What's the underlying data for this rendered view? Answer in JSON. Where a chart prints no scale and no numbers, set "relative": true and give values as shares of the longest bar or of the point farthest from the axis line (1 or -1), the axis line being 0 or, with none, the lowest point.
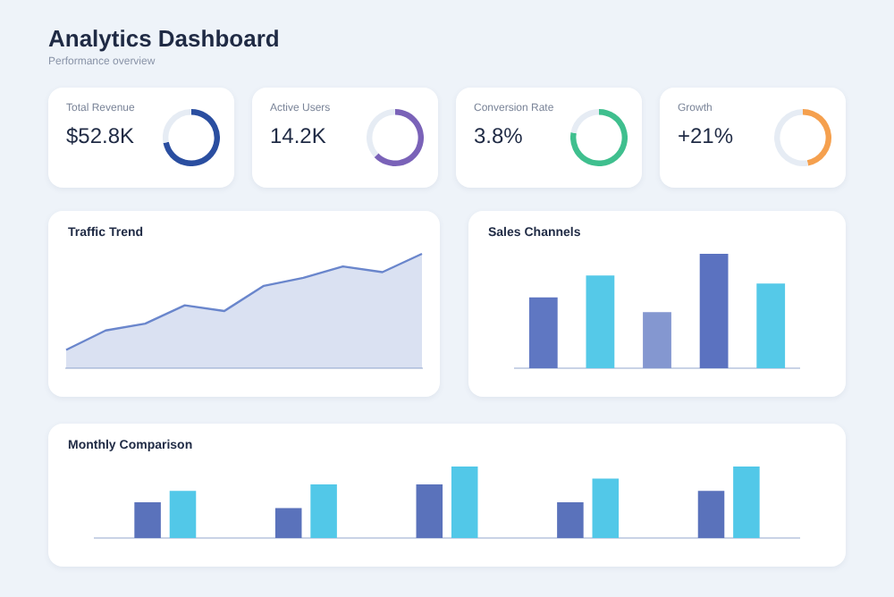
{
  "chart_data": [
    {
      "type": "other",
      "title": "Analytics Dashboard",
      "subtitle": "Performance overview"
    },
    {
      "type": "donut",
      "title": "Total Revenue",
      "annotations": [
        "$52.8K"
      ],
      "categories": [
        null,
        null
      ],
      "values": [
        72,
        28
      ],
      "colors": [
        "#2a4ea0",
        "#e6ecf4"
      ]
    },
    {
      "type": "donut",
      "title": "Active Users",
      "annotations": [
        "14.2K"
      ],
      "categories": [
        null,
        null
      ],
      "values": [
        63,
        37
      ],
      "colors": [
        "#7a62b8",
        "#e6ecf4"
      ]
    },
    {
      "type": "donut",
      "title": "Conversion Rate",
      "annotations": [
        "3.8%"
      ],
      "categories": [
        null,
        null
      ],
      "values": [
        78,
        22
      ],
      "colors": [
        "#3fbf8e",
        "#e6ecf4"
      ]
    },
    {
      "type": "donut",
      "title": "Growth",
      "annotations": [
        "+21%"
      ],
      "categories": [
        null,
        null
      ],
      "values": [
        47,
        53
      ],
      "colors": [
        "#f5a04e",
        "#e6ecf4"
      ]
    },
    {
      "type": "area",
      "title": "Traffic Trend",
      "relative": true,
      "categories": [
        null,
        null,
        null,
        null,
        null,
        null,
        null,
        null,
        null,
        null
      ],
      "series": [
        {
          "color": "#6a86cc",
          "values": [
            0.16,
            0.33,
            0.39,
            0.55,
            0.5,
            0.72,
            0.79,
            0.89,
            0.84,
            1
          ]
        }
      ]
    },
    {
      "type": "bar",
      "title": "Sales Channels",
      "relative": true,
      "categories": [
        null,
        null,
        null,
        null,
        null
      ],
      "values": [
        0.62,
        0.81,
        0.49,
        1,
        0.74
      ],
      "colors": [
        "#5f77c2",
        "#55c9e8",
        "#8497d0",
        "#5b72c0",
        "#55c9e8"
      ]
    },
    {
      "type": "bar",
      "title": "Monthly Comparison",
      "relative": true,
      "categories": [
        null,
        null,
        null,
        null,
        null
      ],
      "series": [
        {
          "color": "#5a72bb",
          "values": [
            0.5,
            0.42,
            0.75,
            0.5,
            0.66
          ]
        },
        {
          "color": "#52c8e8",
          "values": [
            0.66,
            0.75,
            1,
            0.83,
            1
          ]
        }
      ]
    }
  ]
}
